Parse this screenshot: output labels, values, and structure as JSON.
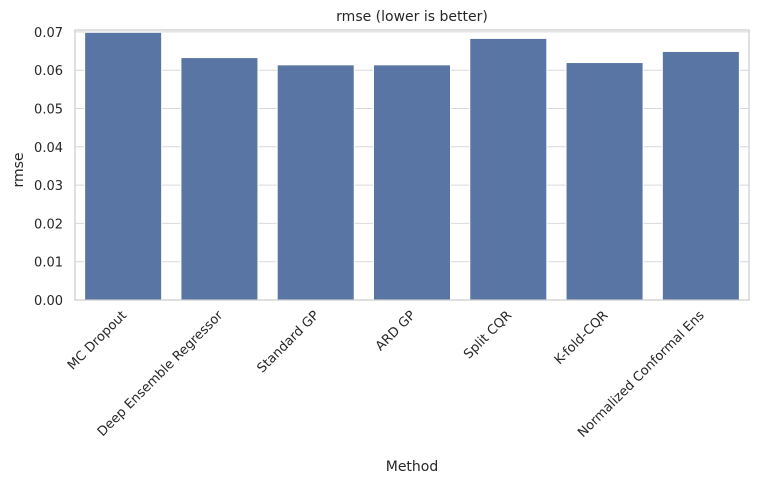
{
  "chart_data": {
    "type": "bar",
    "title": "rmse (lower is better)",
    "xlabel": "Method",
    "ylabel": "rmse",
    "categories": [
      "MC Dropout",
      "Deep Ensemble Regressor",
      "Standard GP",
      "ARD GP",
      "Split CQR",
      "K-fold-CQR",
      "Normalized Conformal Ens"
    ],
    "values": [
      0.0699,
      0.0633,
      0.0614,
      0.0614,
      0.0683,
      0.062,
      0.0649
    ],
    "yticks": [
      "0.00",
      "0.01",
      "0.02",
      "0.03",
      "0.04",
      "0.05",
      "0.06",
      "0.07"
    ],
    "ylim": [
      0,
      0.0705
    ],
    "grid": "horizontal",
    "colors": {
      "bar": "#5875a4",
      "grid": "#d9d9d9",
      "frame": "#cccccc"
    }
  }
}
